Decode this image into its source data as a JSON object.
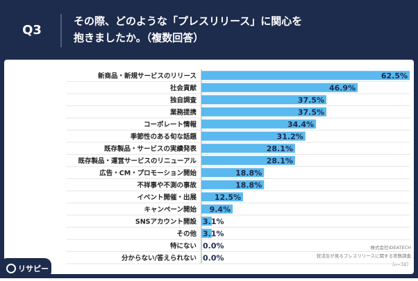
{
  "question": "Q3",
  "chart_data": {
    "type": "bar",
    "title_lines": [
      "その際、どのような「プレスリリース」に関心を",
      "抱きましたか。（複数回答）"
    ],
    "categories": [
      "新商品・新規サービスのリリース",
      "社会貢献",
      "独自調査",
      "業務提携",
      "コーポレート情報",
      "季節性のある旬な話題",
      "既存製品・サービスの実績発表",
      "既存製品・運営サービスのリニューアル",
      "広告・CM・プロモーション開始",
      "不祥事や不測の事故",
      "イベント開催・出展",
      "キャンペーン開始",
      "SNSアカウント開設",
      "その他",
      "特にない",
      "分からない/答えられない"
    ],
    "values": [
      62.5,
      46.9,
      37.5,
      37.5,
      34.4,
      31.2,
      28.1,
      28.1,
      18.8,
      18.8,
      12.5,
      9.4,
      3.1,
      3.1,
      0,
      0
    ],
    "value_labels": [
      "62.5%",
      "46.9%",
      "37.5%",
      "37.5%",
      "34.4%",
      "31.2%",
      "28.1%",
      "28.1%",
      "18.8%",
      "18.8%",
      "12.5%",
      "9.4%",
      "3.1%",
      "3.1%",
      "0.0%",
      "0.0%"
    ],
    "color": "#5ab9ee"
  },
  "source": [
    "株式会社IDEATECH",
    "就活生が見るプレスリリースに関する実態調査",
    "（n=32）"
  ],
  "logo": "リサピー"
}
